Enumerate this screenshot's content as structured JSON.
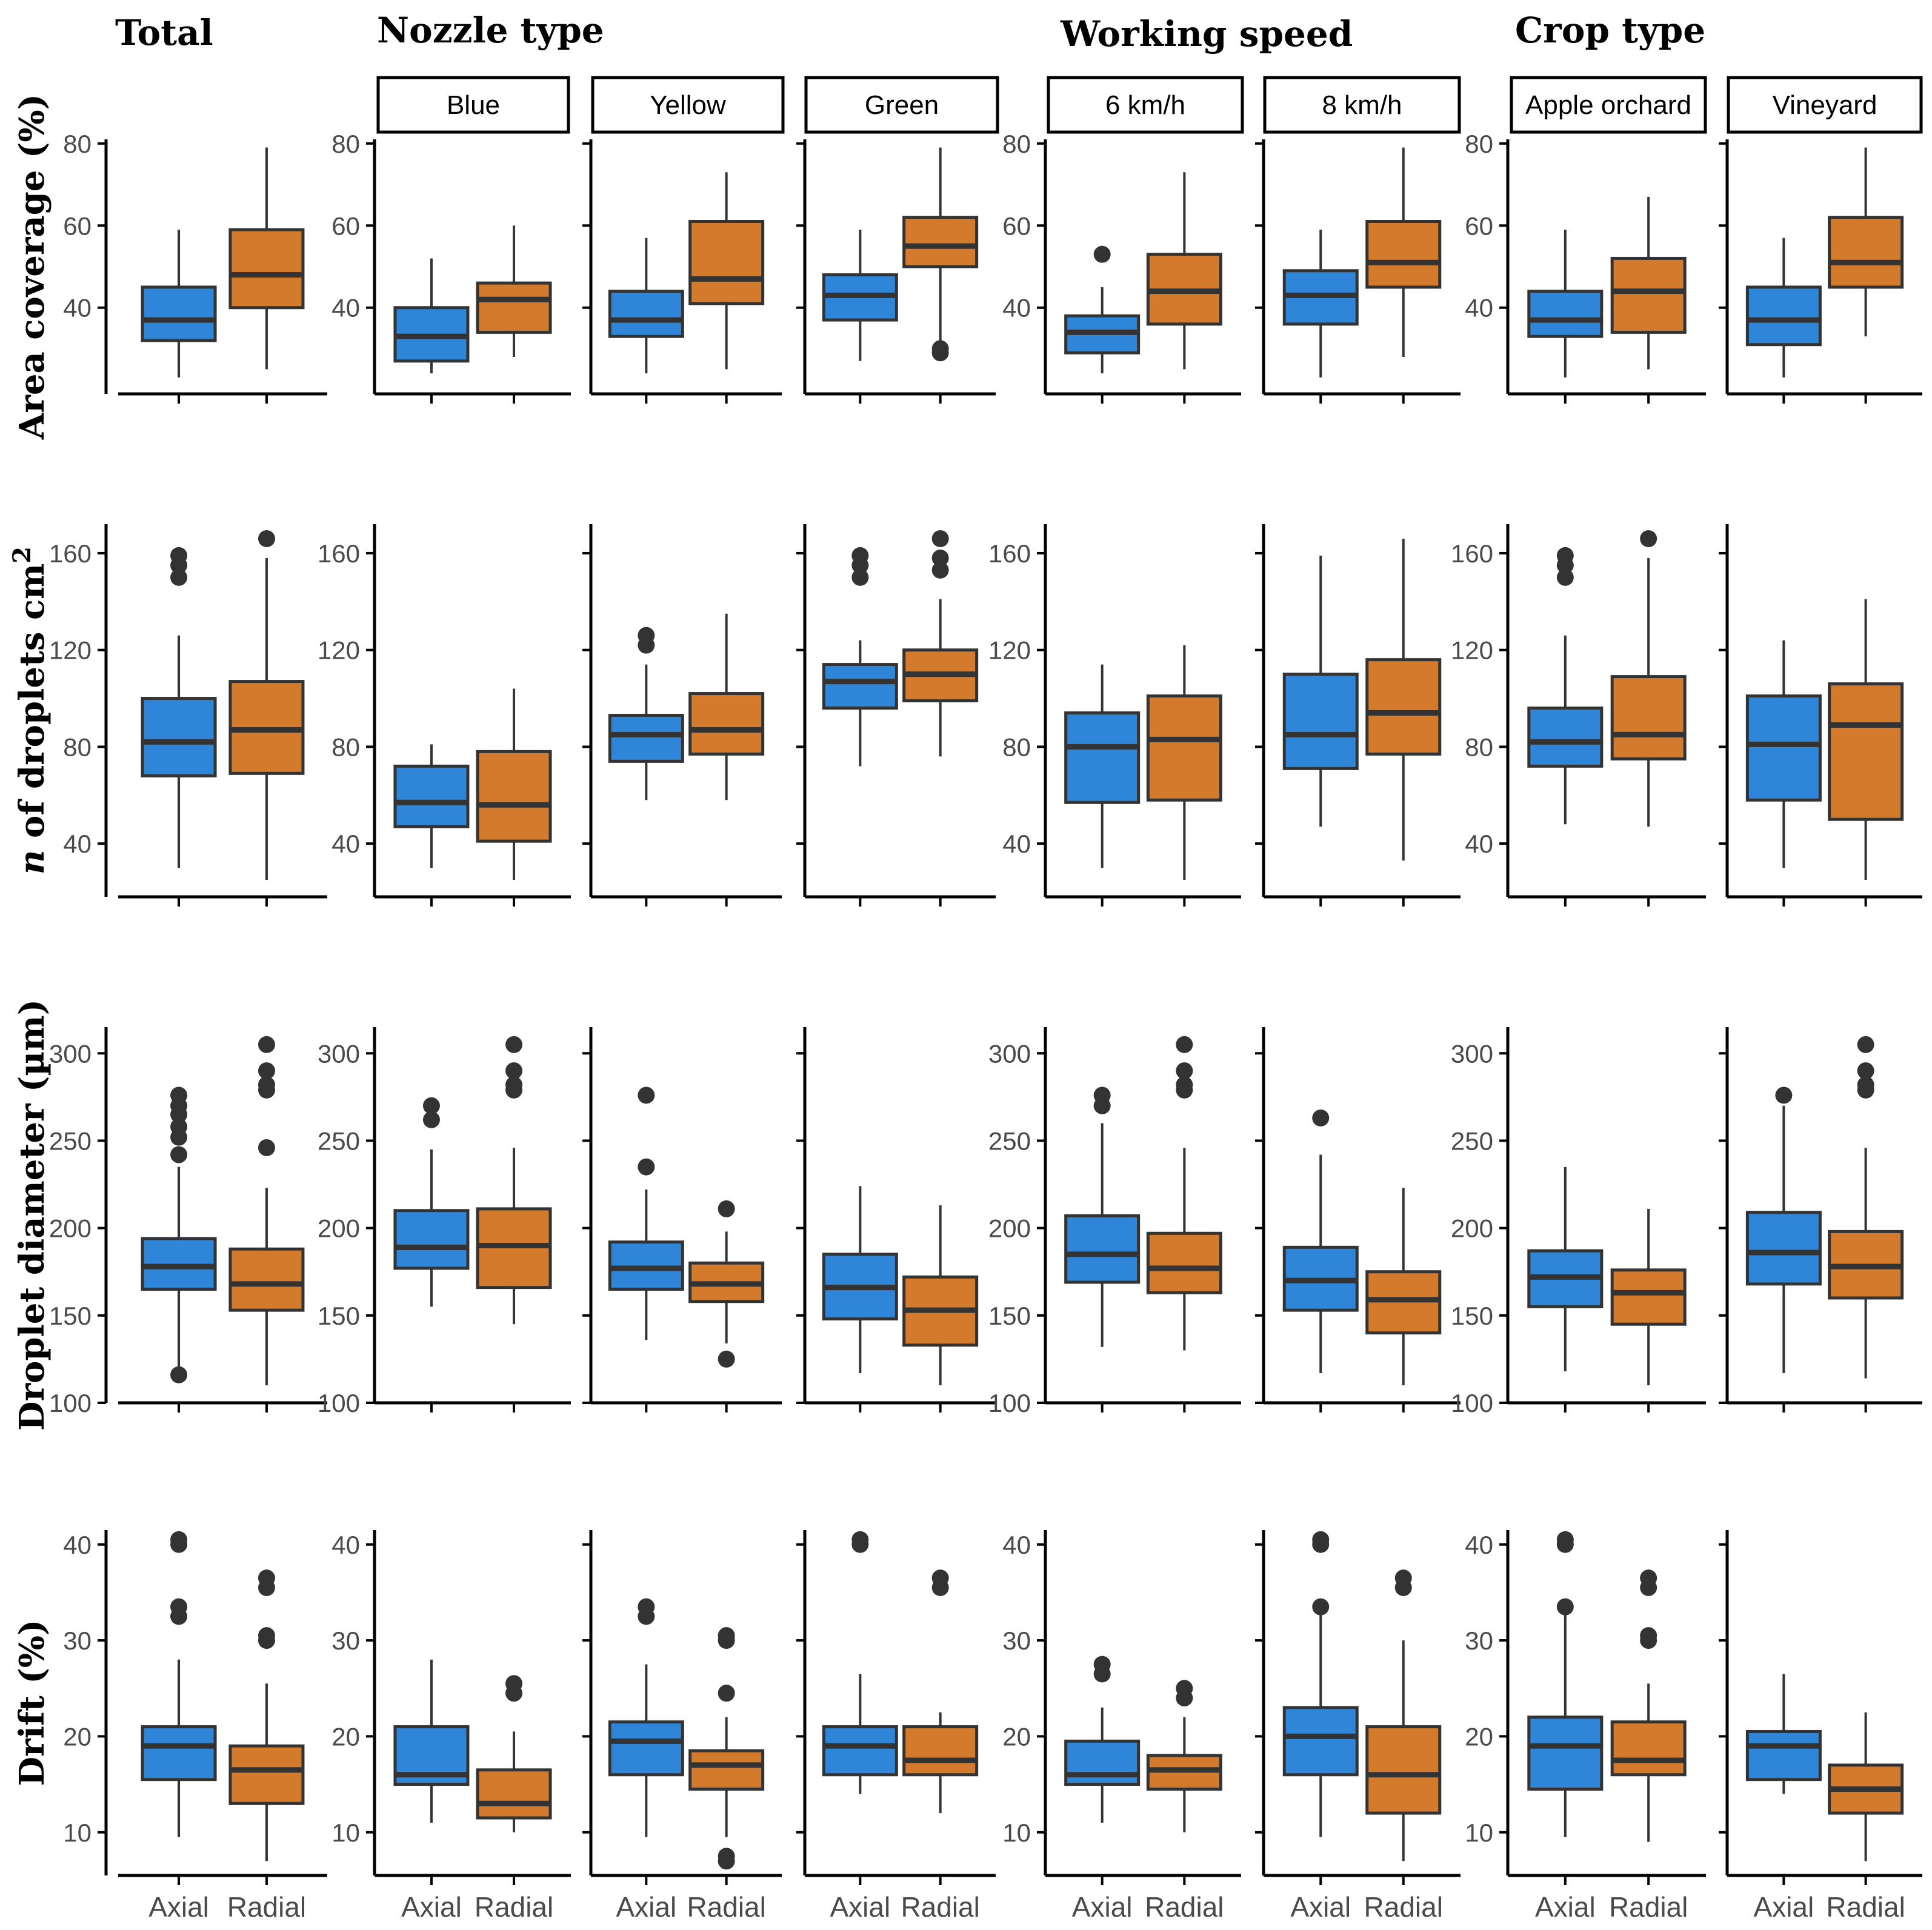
{
  "colors": {
    "axial": "#2f86d9",
    "radial": "#d47a2c",
    "outline": "#333333",
    "axis": "#000000"
  },
  "groups": [
    {
      "title": "Total"
    },
    {
      "title": "Nozzle type"
    },
    {
      "title": "Working speed"
    },
    {
      "title": "Crop type"
    }
  ],
  "facet_labels": [
    "Blue",
    "Yellow",
    "Green",
    "6 km/h",
    "8 km/h",
    "Apple orchard",
    "Vineyard"
  ],
  "chart_data": {
    "type": "boxplot",
    "categories": [
      "Axial",
      "Radial"
    ],
    "series": [
      "Axial",
      "Radial"
    ],
    "panels": [
      "Total",
      "Blue",
      "Yellow",
      "Green",
      "6 km/h",
      "8 km/h",
      "Apple orchard",
      "Vineyard"
    ],
    "rows": [
      {
        "ylabel_prefix": "",
        "ylabel": "Area coverage (%)",
        "ylim": [
          19,
          81
        ],
        "yticks": [
          40,
          60,
          80
        ],
        "data": [
          [
            {
              "min": 23,
              "q1": 32,
              "med": 37,
              "q3": 45,
              "max": 59,
              "out": []
            },
            {
              "min": 25,
              "q1": 40,
              "med": 48,
              "q3": 59,
              "max": 79,
              "out": []
            }
          ],
          [
            {
              "min": 24,
              "q1": 27,
              "med": 33,
              "q3": 40,
              "max": 52,
              "out": []
            },
            {
              "min": 28,
              "q1": 34,
              "med": 42,
              "q3": 46,
              "max": 60,
              "out": []
            }
          ],
          [
            {
              "min": 24,
              "q1": 33,
              "med": 37,
              "q3": 44,
              "max": 57,
              "out": []
            },
            {
              "min": 25,
              "q1": 41,
              "med": 47,
              "q3": 61,
              "max": 73,
              "out": []
            }
          ],
          [
            {
              "min": 27,
              "q1": 37,
              "med": 43,
              "q3": 48,
              "max": 59,
              "out": []
            },
            {
              "min": 30,
              "q1": 50,
              "med": 55,
              "q3": 62,
              "max": 79,
              "out": [
                29,
                30
              ]
            }
          ],
          [
            {
              "min": 24,
              "q1": 29,
              "med": 34,
              "q3": 38,
              "max": 45,
              "out": [
                53
              ]
            },
            {
              "min": 25,
              "q1": 36,
              "med": 44,
              "q3": 53,
              "max": 73,
              "out": []
            }
          ],
          [
            {
              "min": 23,
              "q1": 36,
              "med": 43,
              "q3": 49,
              "max": 59,
              "out": []
            },
            {
              "min": 28,
              "q1": 45,
              "med": 51,
              "q3": 61,
              "max": 79,
              "out": []
            }
          ],
          [
            {
              "min": 23,
              "q1": 33,
              "med": 37,
              "q3": 44,
              "max": 59,
              "out": []
            },
            {
              "min": 25,
              "q1": 34,
              "med": 44,
              "q3": 52,
              "max": 67,
              "out": []
            }
          ],
          [
            {
              "min": 23,
              "q1": 31,
              "med": 37,
              "q3": 45,
              "max": 57,
              "out": []
            },
            {
              "min": 33,
              "q1": 45,
              "med": 51,
              "q3": 62,
              "max": 79,
              "out": []
            }
          ]
        ]
      },
      {
        "ylabel_prefix": "n",
        "ylabel": " of droplets cm",
        "ylabel_sup": "2",
        "ylim": [
          18,
          172
        ],
        "yticks": [
          40,
          80,
          120,
          160
        ],
        "data": [
          [
            {
              "min": 30,
              "q1": 68,
              "med": 82,
              "q3": 100,
              "max": 126,
              "out": [
                150,
                155,
                159
              ]
            },
            {
              "min": 25,
              "q1": 69,
              "med": 87,
              "q3": 107,
              "max": 158,
              "out": [
                166
              ]
            }
          ],
          [
            {
              "min": 30,
              "q1": 47,
              "med": 57,
              "q3": 72,
              "max": 81,
              "out": []
            },
            {
              "min": 25,
              "q1": 41,
              "med": 56,
              "q3": 78,
              "max": 104,
              "out": []
            }
          ],
          [
            {
              "min": 58,
              "q1": 74,
              "med": 85,
              "q3": 93,
              "max": 114,
              "out": [
                122,
                126
              ]
            },
            {
              "min": 58,
              "q1": 77,
              "med": 87,
              "q3": 102,
              "max": 135,
              "out": []
            }
          ],
          [
            {
              "min": 72,
              "q1": 96,
              "med": 107,
              "q3": 114,
              "max": 124,
              "out": [
                150,
                155,
                159
              ]
            },
            {
              "min": 76,
              "q1": 99,
              "med": 110,
              "q3": 120,
              "max": 141,
              "out": [
                153,
                158,
                166
              ]
            }
          ],
          [
            {
              "min": 30,
              "q1": 57,
              "med": 80,
              "q3": 94,
              "max": 114,
              "out": []
            },
            {
              "min": 25,
              "q1": 58,
              "med": 83,
              "q3": 101,
              "max": 122,
              "out": []
            }
          ],
          [
            {
              "min": 47,
              "q1": 71,
              "med": 85,
              "q3": 110,
              "max": 159,
              "out": []
            },
            {
              "min": 33,
              "q1": 77,
              "med": 94,
              "q3": 116,
              "max": 166,
              "out": []
            }
          ],
          [
            {
              "min": 48,
              "q1": 72,
              "med": 82,
              "q3": 96,
              "max": 126,
              "out": [
                150,
                155,
                159
              ]
            },
            {
              "min": 47,
              "q1": 75,
              "med": 85,
              "q3": 109,
              "max": 158,
              "out": [
                166
              ]
            }
          ],
          [
            {
              "min": 30,
              "q1": 58,
              "med": 81,
              "q3": 101,
              "max": 124,
              "out": []
            },
            {
              "min": 25,
              "q1": 50,
              "med": 89,
              "q3": 106,
              "max": 141,
              "out": []
            }
          ]
        ]
      },
      {
        "ylabel_prefix": "",
        "ylabel": "Droplet diameter (µm)",
        "ylim": [
          100,
          315
        ],
        "yticks": [
          100,
          150,
          200,
          250,
          300
        ],
        "data": [
          [
            {
              "min": 118,
              "q1": 165,
              "med": 178,
              "q3": 194,
              "max": 235,
              "out": [
                116,
                242,
                252,
                258,
                265,
                270,
                276
              ]
            },
            {
              "min": 110,
              "q1": 153,
              "med": 168,
              "q3": 188,
              "max": 223,
              "out": [
                246,
                279,
                282,
                290,
                305
              ]
            }
          ],
          [
            {
              "min": 155,
              "q1": 177,
              "med": 189,
              "q3": 210,
              "max": 245,
              "out": [
                262,
                270
              ]
            },
            {
              "min": 145,
              "q1": 166,
              "med": 190,
              "q3": 211,
              "max": 246,
              "out": [
                279,
                282,
                290,
                305
              ]
            }
          ],
          [
            {
              "min": 136,
              "q1": 165,
              "med": 177,
              "q3": 192,
              "max": 222,
              "out": [
                235,
                276
              ]
            },
            {
              "min": 134,
              "q1": 158,
              "med": 168,
              "q3": 180,
              "max": 198,
              "out": [
                125,
                211
              ]
            }
          ],
          [
            {
              "min": 117,
              "q1": 148,
              "med": 166,
              "q3": 185,
              "max": 224,
              "out": []
            },
            {
              "min": 110,
              "q1": 133,
              "med": 153,
              "q3": 172,
              "max": 213,
              "out": []
            }
          ],
          [
            {
              "min": 132,
              "q1": 169,
              "med": 185,
              "q3": 207,
              "max": 260,
              "out": [
                270,
                276
              ]
            },
            {
              "min": 130,
              "q1": 163,
              "med": 177,
              "q3": 197,
              "max": 246,
              "out": [
                279,
                282,
                290,
                305
              ]
            }
          ],
          [
            {
              "min": 117,
              "q1": 153,
              "med": 170,
              "q3": 189,
              "max": 242,
              "out": [
                263
              ]
            },
            {
              "min": 110,
              "q1": 140,
              "med": 159,
              "q3": 175,
              "max": 223,
              "out": []
            }
          ],
          [
            {
              "min": 118,
              "q1": 155,
              "med": 172,
              "q3": 187,
              "max": 235,
              "out": []
            },
            {
              "min": 110,
              "q1": 145,
              "med": 163,
              "q3": 176,
              "max": 211,
              "out": []
            }
          ],
          [
            {
              "min": 117,
              "q1": 168,
              "med": 186,
              "q3": 209,
              "max": 270,
              "out": [
                276
              ]
            },
            {
              "min": 114,
              "q1": 160,
              "med": 178,
              "q3": 198,
              "max": 246,
              "out": [
                279,
                282,
                290,
                305
              ]
            }
          ]
        ]
      },
      {
        "ylabel_prefix": "",
        "ylabel": "Drift (%)",
        "ylim": [
          5.5,
          41.5
        ],
        "yticks": [
          10,
          20,
          30,
          40
        ],
        "data": [
          [
            {
              "min": 9.5,
              "q1": 15.5,
              "med": 19,
              "q3": 21,
              "max": 28,
              "out": [
                32.5,
                33.5,
                40,
                40.5
              ]
            },
            {
              "min": 7,
              "q1": 13,
              "med": 16.5,
              "q3": 19,
              "max": 25.5,
              "out": [
                30,
                30.5,
                35.5,
                36.5
              ]
            }
          ],
          [
            {
              "min": 11,
              "q1": 15,
              "med": 16,
              "q3": 21,
              "max": 28,
              "out": []
            },
            {
              "min": 10,
              "q1": 11.5,
              "med": 13,
              "q3": 16.5,
              "max": 20.5,
              "out": [
                24.5,
                25.5
              ]
            }
          ],
          [
            {
              "min": 9.5,
              "q1": 16,
              "med": 19.5,
              "q3": 21.5,
              "max": 27.5,
              "out": [
                32.5,
                33.5
              ]
            },
            {
              "min": 9.5,
              "q1": 14.5,
              "med": 17,
              "q3": 18.5,
              "max": 22,
              "out": [
                7,
                7.5,
                24.5,
                30,
                30.5
              ]
            }
          ],
          [
            {
              "min": 14,
              "q1": 16,
              "med": 19,
              "q3": 21,
              "max": 26.5,
              "out": [
                40,
                40.5
              ]
            },
            {
              "min": 12,
              "q1": 16,
              "med": 17.5,
              "q3": 21,
              "max": 22.5,
              "out": [
                35.5,
                36.5
              ]
            }
          ],
          [
            {
              "min": 11,
              "q1": 15,
              "med": 16,
              "q3": 19.5,
              "max": 23,
              "out": [
                26.5,
                27.5
              ]
            },
            {
              "min": 10,
              "q1": 14.5,
              "med": 16.5,
              "q3": 18,
              "max": 22,
              "out": [
                24,
                25
              ]
            }
          ],
          [
            {
              "min": 9.5,
              "q1": 16,
              "med": 20,
              "q3": 23,
              "max": 33,
              "out": [
                33.5,
                40,
                40.5
              ]
            },
            {
              "min": 7,
              "q1": 12,
              "med": 16,
              "q3": 21,
              "max": 30,
              "out": [
                35.5,
                36.5
              ]
            }
          ],
          [
            {
              "min": 9.5,
              "q1": 14.5,
              "med": 19,
              "q3": 22,
              "max": 33,
              "out": [
                33.5,
                40,
                40.5
              ]
            },
            {
              "min": 9,
              "q1": 16,
              "med": 17.5,
              "q3": 21.5,
              "max": 25.5,
              "out": [
                30,
                30.5,
                35.5,
                36.5
              ]
            }
          ],
          [
            {
              "min": 14,
              "q1": 15.5,
              "med": 19,
              "q3": 20.5,
              "max": 26.5,
              "out": []
            },
            {
              "min": 7,
              "q1": 12,
              "med": 14.5,
              "q3": 17,
              "max": 22.5,
              "out": []
            }
          ]
        ]
      }
    ]
  }
}
